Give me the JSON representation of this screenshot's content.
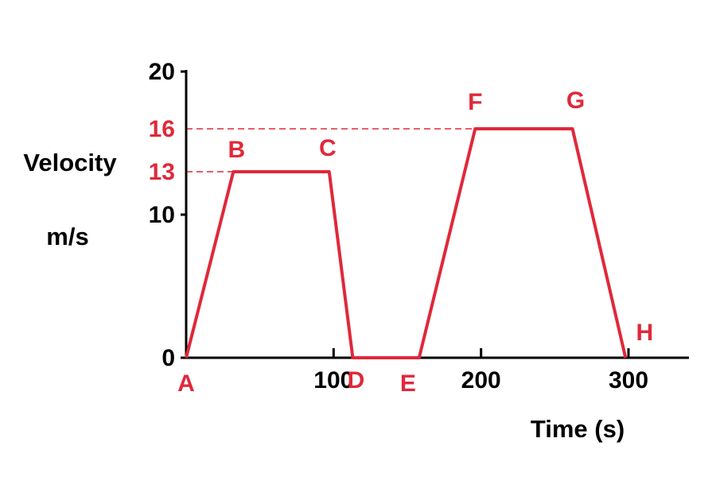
{
  "chart_data": {
    "type": "line",
    "ylabel": [
      "Velocity",
      "m/s"
    ],
    "xlabel": "Time (s)",
    "x": [
      0,
      32,
      97,
      113,
      158,
      196,
      262,
      298
    ],
    "values": [
      0,
      13,
      13,
      0,
      0,
      16,
      16,
      0
    ],
    "point_labels": [
      "A",
      "B",
      "C",
      "D",
      "E",
      "F",
      "G",
      "H"
    ],
    "color": "#e0283a",
    "xlim": [
      0,
      341
    ],
    "ylim": [
      0,
      20
    ],
    "xticks": [
      0,
      100,
      200,
      300
    ],
    "yticks": [
      0,
      10,
      20
    ],
    "reference_lines": [
      13,
      16
    ]
  }
}
